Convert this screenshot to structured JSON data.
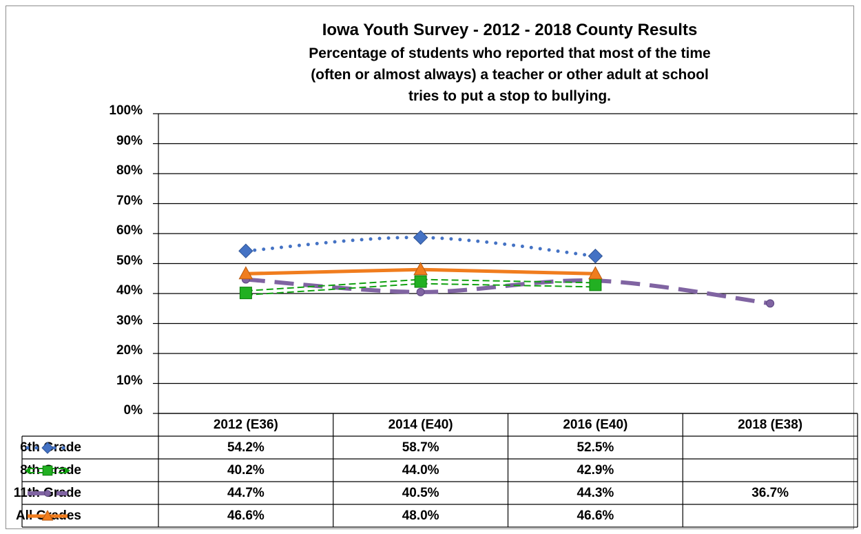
{
  "chart_data": {
    "type": "line",
    "title": "Iowa Youth Survey - 2012 - 2018 County Results",
    "subtitle_lines": [
      "Percentage of students who reported that most of the time",
      "(often or almost always) a teacher or other adult at school",
      "tries to put a stop to bullying."
    ],
    "categories": [
      "2012 (E36)",
      "2014 (E40)",
      "2016 (E40)",
      "2018 (E38)"
    ],
    "yticks": [
      "0%",
      "10%",
      "20%",
      "30%",
      "40%",
      "50%",
      "60%",
      "70%",
      "80%",
      "90%",
      "100%"
    ],
    "ylim": [
      0,
      100
    ],
    "grid": true,
    "legend": "data-table",
    "series": [
      {
        "name": "6th Grade",
        "values": [
          54.2,
          58.7,
          52.5,
          null
        ],
        "labels": [
          "54.2%",
          "58.7%",
          "52.5%",
          ""
        ],
        "color": "#4472c4",
        "marker": "diamond",
        "line": "dotted"
      },
      {
        "name": "8th Grade",
        "values": [
          40.2,
          44.0,
          42.9,
          null
        ],
        "labels": [
          "40.2%",
          "44.0%",
          "42.9%",
          ""
        ],
        "color": "#10a010",
        "marker": "square",
        "line": "double-dashed"
      },
      {
        "name": "11th Grade",
        "values": [
          44.7,
          40.5,
          44.3,
          36.7
        ],
        "labels": [
          "44.7%",
          "40.5%",
          "44.3%",
          "36.7%"
        ],
        "color": "#8064a2",
        "marker": "circle",
        "line": "dashed"
      },
      {
        "name": "All Grades",
        "values": [
          46.6,
          48.0,
          46.6,
          null
        ],
        "labels": [
          "46.6%",
          "48.0%",
          "46.6%",
          ""
        ],
        "color": "#f07d1e",
        "marker": "triangle",
        "line": "solid"
      }
    ]
  }
}
